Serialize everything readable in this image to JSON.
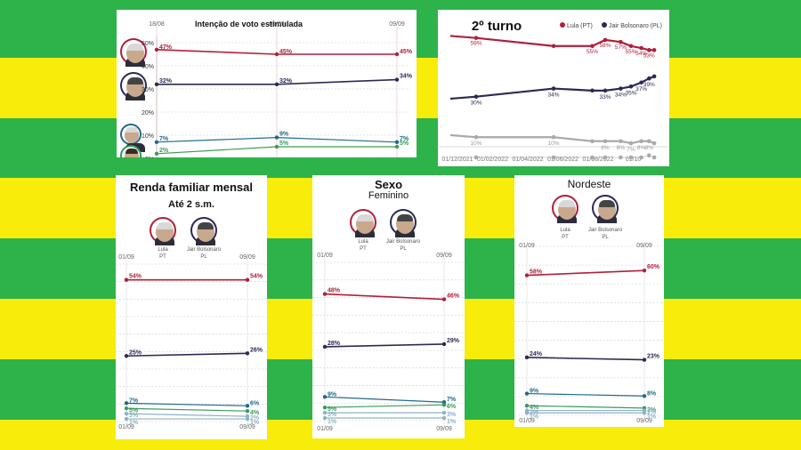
{
  "colors": {
    "lula": "#b0203a",
    "bolsonaro": "#2b2a55",
    "ciro": "#1f6a8a",
    "tebet": "#3b9a5b",
    "others": "#8db3c7",
    "gray": "#a9a9a9",
    "green": "#2db34a",
    "yellow": "#f7ec0a"
  },
  "candidates": {
    "lula_name": "Lula",
    "lula_party": "PT",
    "bolsonaro_name": "Jair Bolsonaro",
    "bolsonaro_party": "PL"
  },
  "chart_data": [
    {
      "id": "estimulada",
      "type": "line",
      "title": "Intenção de voto estimulada",
      "x": [
        "18/08",
        "01/09",
        "09/09"
      ],
      "ylim": [
        0,
        50
      ],
      "yticks": [
        "0%",
        "10%",
        "20%",
        "30%",
        "40%",
        "50%"
      ],
      "series": [
        {
          "values": [
            47,
            45,
            45
          ],
          "labels": [
            "47%",
            "45%",
            "45%"
          ],
          "color": "lula"
        },
        {
          "values": [
            32,
            32,
            34
          ],
          "labels": [
            "32%",
            "32%",
            "34%"
          ],
          "color": "bolsonaro"
        },
        {
          "values": [
            7,
            9,
            7
          ],
          "labels": [
            "7%",
            "9%",
            "7%"
          ],
          "color": "ciro"
        },
        {
          "values": [
            2,
            5,
            5
          ],
          "labels": [
            "2%",
            "5%",
            "5%"
          ],
          "color": "tebet"
        }
      ]
    },
    {
      "id": "segundo_turno",
      "type": "line",
      "title": "2º turno",
      "legend": [
        "Lula (PT)",
        "Jair Bolsonaro (PL)"
      ],
      "xticks": [
        "01/12/2021",
        "01/02/2022",
        "01/04/2022",
        "01/06/2022",
        "01/08/2022",
        "01/10"
      ],
      "ylim": [
        0,
        65
      ],
      "series": [
        {
          "x": [
            0,
            1,
            4,
            5.5,
            6,
            6.6,
            7,
            7.4,
            7.7,
            7.9
          ],
          "values": [
            60,
            59,
            55,
            55,
            58,
            57,
            55,
            54,
            53,
            53
          ],
          "labels": [
            "",
            "59%",
            "",
            "55%",
            "58%",
            "57%",
            "55%",
            "54%",
            "53%",
            ""
          ],
          "color": "lula"
        },
        {
          "x": [
            0,
            1,
            4,
            5.5,
            6,
            6.6,
            7,
            7.4,
            7.7,
            7.9
          ],
          "values": [
            29,
            30,
            34,
            33,
            33,
            34,
            35,
            37,
            39,
            40
          ],
          "labels": [
            "",
            "30%",
            "34%",
            "",
            "33%",
            "34%",
            "35%",
            "37%",
            "39%",
            ""
          ],
          "color": "bolsonaro"
        },
        {
          "x": [
            0,
            1,
            4,
            5.5,
            6,
            6.6,
            7,
            7.4,
            7.7,
            7.9
          ],
          "values": [
            11,
            10,
            10,
            8,
            8,
            8,
            7,
            8,
            8,
            7
          ],
          "labels": [
            "",
            "10%",
            "10%",
            "",
            "8%",
            "8%",
            "7%",
            "8%",
            "8%",
            ""
          ],
          "color": "gray"
        },
        {
          "x": [
            0,
            1,
            4,
            5.5,
            6,
            6.6,
            7,
            7.4,
            7.7,
            7.9
          ],
          "values": [
            0,
            0,
            0,
            0,
            0,
            0,
            0,
            0,
            1,
            0
          ],
          "labels": [
            "",
            "",
            "",
            "",
            "",
            "",
            "",
            "",
            "",
            ""
          ],
          "color": "gray"
        }
      ]
    },
    {
      "id": "renda",
      "type": "line",
      "title": "Renda familiar mensal",
      "subtitle": "Até 2 s.m.",
      "x": [
        "01/09",
        "09/09"
      ],
      "ylim": [
        0,
        60
      ],
      "series": [
        {
          "values": [
            54,
            54
          ],
          "labels": [
            "54%",
            "54%"
          ],
          "color": "lula"
        },
        {
          "values": [
            25,
            26
          ],
          "labels": [
            "25%",
            "26%"
          ],
          "color": "bolsonaro"
        },
        {
          "values": [
            7,
            6
          ],
          "labels": [
            "7%",
            "6%"
          ],
          "color": "ciro"
        },
        {
          "values": [
            5,
            4
          ],
          "labels": [
            "5%",
            "4%"
          ],
          "color": "tebet"
        },
        {
          "values": [
            3,
            2
          ],
          "labels": [
            "3%",
            "2%"
          ],
          "color": "others"
        },
        {
          "values": [
            1,
            1
          ],
          "labels": [
            "1%",
            "1%"
          ],
          "color": "others"
        }
      ]
    },
    {
      "id": "sexo",
      "type": "line",
      "title": "Sexo",
      "subtitle": "Feminino",
      "x": [
        "01/09",
        "09/09"
      ],
      "ylim": [
        0,
        60
      ],
      "series": [
        {
          "values": [
            48,
            46
          ],
          "labels": [
            "48%",
            "46%"
          ],
          "color": "lula"
        },
        {
          "values": [
            28,
            29
          ],
          "labels": [
            "28%",
            "29%"
          ],
          "color": "bolsonaro"
        },
        {
          "values": [
            9,
            7
          ],
          "labels": [
            "9%",
            "7%"
          ],
          "color": "ciro"
        },
        {
          "values": [
            5,
            6
          ],
          "labels": [
            "5%",
            "6%"
          ],
          "color": "tebet"
        },
        {
          "values": [
            3,
            3
          ],
          "labels": [
            "3%",
            "3%"
          ],
          "color": "others"
        },
        {
          "values": [
            1,
            1
          ],
          "labels": [
            "1%",
            "1%"
          ],
          "color": "others"
        }
      ]
    },
    {
      "id": "nordeste",
      "type": "line",
      "title": "Nordeste",
      "x": [
        "01/09",
        "09/09"
      ],
      "ylim": [
        0,
        70
      ],
      "series": [
        {
          "values": [
            58,
            60
          ],
          "labels": [
            "58%",
            "60%"
          ],
          "color": "lula"
        },
        {
          "values": [
            24,
            23
          ],
          "labels": [
            "24%",
            "23%"
          ],
          "color": "bolsonaro"
        },
        {
          "values": [
            9,
            8
          ],
          "labels": [
            "9%",
            "8%"
          ],
          "color": "ciro"
        },
        {
          "values": [
            4,
            3
          ],
          "labels": [
            "4%",
            "3%"
          ],
          "color": "tebet"
        },
        {
          "values": [
            2,
            2
          ],
          "labels": [
            "2%",
            "2%"
          ],
          "color": "others"
        },
        {
          "values": [
            1,
            1
          ],
          "labels": [
            "1%",
            "1%"
          ],
          "color": "others"
        }
      ]
    }
  ]
}
